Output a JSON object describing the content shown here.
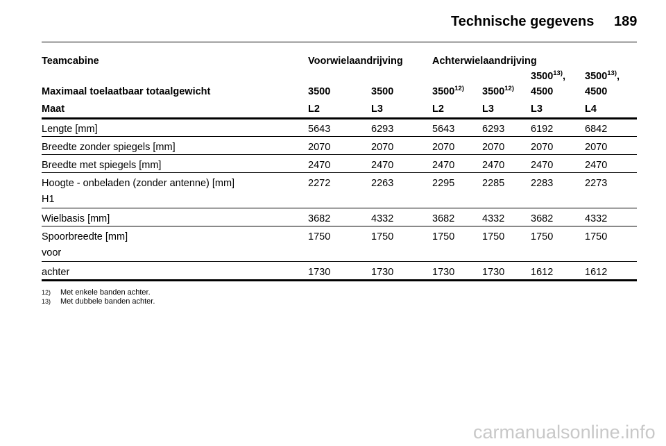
{
  "header": {
    "title": "Technische gegevens",
    "page": "189"
  },
  "table": {
    "group_row": {
      "label": "Teamcabine",
      "groups": [
        "Voorwielaandrijving",
        "Achterwielaandrijving"
      ]
    },
    "weight_row": {
      "label": "Maximaal toelaatbaar totaalgewicht",
      "cells": [
        {
          "text": "3500"
        },
        {
          "text": "3500"
        },
        {
          "text": "3500",
          "sup": "12)"
        },
        {
          "text": "3500",
          "sup": "12)"
        },
        {
          "text": "3500",
          "sup": "13)",
          "after": ",",
          "line2": "4500"
        },
        {
          "text": "3500",
          "sup": "13)",
          "after": ",",
          "line2": "4500"
        }
      ]
    },
    "size_row": {
      "label": "Maat",
      "cells": [
        "L2",
        "L3",
        "L2",
        "L3",
        "L3",
        "L4"
      ]
    },
    "rows": [
      {
        "label": "Lengte [mm]",
        "values": [
          5643,
          6293,
          5643,
          6293,
          6192,
          6842
        ]
      },
      {
        "label": "Breedte zonder spiegels [mm]",
        "values": [
          2070,
          2070,
          2070,
          2070,
          2070,
          2070
        ]
      },
      {
        "label": "Breedte met spiegels [mm]",
        "values": [
          2470,
          2470,
          2470,
          2470,
          2470,
          2470
        ]
      },
      {
        "label": "Hoogte - onbeladen (zonder antenne) [mm]",
        "sub": "H1",
        "values": [
          2272,
          2263,
          2295,
          2285,
          2283,
          2273
        ]
      },
      {
        "label": "Wielbasis [mm]",
        "values": [
          3682,
          4332,
          3682,
          4332,
          3682,
          4332
        ]
      },
      {
        "label": "Spoorbreedte [mm]",
        "sub": "voor",
        "values": [
          1750,
          1750,
          1750,
          1750,
          1750,
          1750
        ]
      },
      {
        "label": "achter",
        "values": [
          1730,
          1730,
          1730,
          1730,
          1612,
          1612
        ]
      }
    ]
  },
  "footnotes": [
    {
      "mark": "12)",
      "text": "Met enkele banden achter."
    },
    {
      "mark": "13)",
      "text": "Met dubbele banden achter."
    }
  ],
  "watermark": "carmanualsonline.info"
}
